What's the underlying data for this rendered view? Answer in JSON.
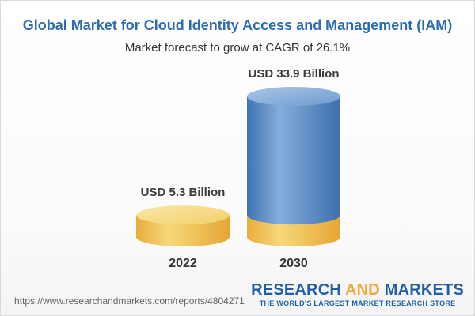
{
  "chart_data": {
    "type": "bar",
    "title": "Global Market for Cloud Identity Access and Management (IAM)",
    "subtitle": "Market forecast to grow at CAGR of 26.1%",
    "categories": [
      "2022",
      "2030"
    ],
    "values": [
      5.3,
      33.9
    ],
    "unit": "USD Billion",
    "data_labels": [
      "USD 5.3 Billion",
      "USD 33.9 Billion"
    ],
    "colors": {
      "base_cylinder": "#f2c75a",
      "growth_cylinder": "#5b8fc9"
    }
  },
  "footer": {
    "source_url": "https://www.researchandmarkets.com/reports/4804271",
    "brand_part1": "RESEARCH ",
    "brand_part2": "AND",
    "brand_part3": " MARKETS",
    "brand_tagline": "THE WORLD'S LARGEST MARKET RESEARCH STORE"
  }
}
